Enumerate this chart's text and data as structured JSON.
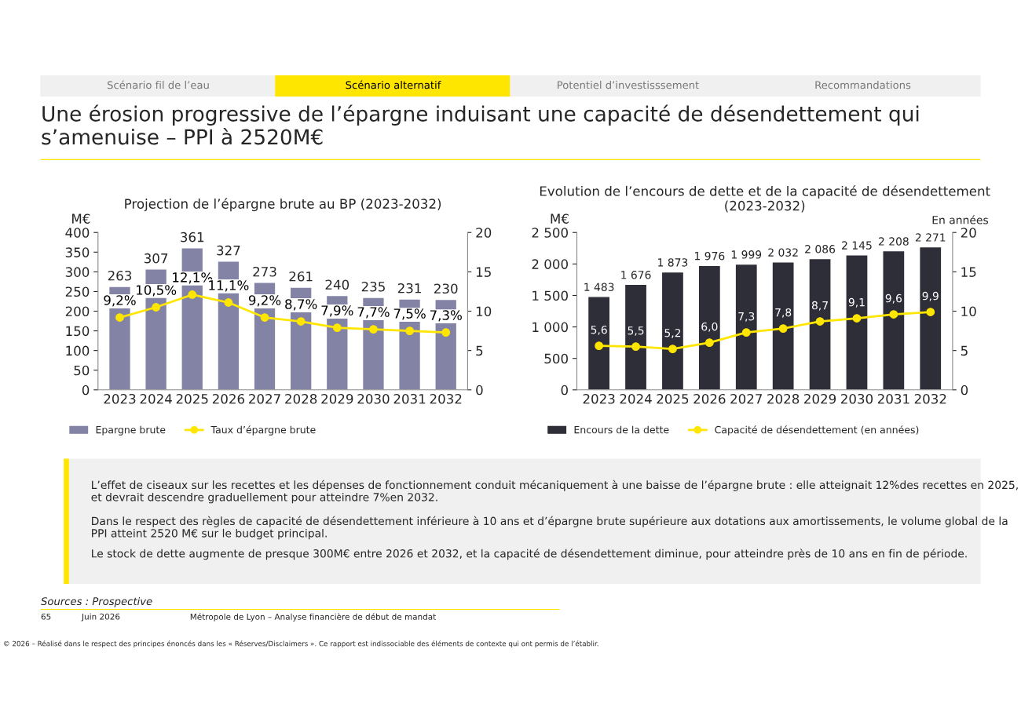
{
  "chart_data": [
    {
      "type": "bar",
      "title": "Projection de l’épargne brute au BP (2023-2032)",
      "ylabel": "M€",
      "categories": [
        "2023",
        "2024",
        "2025",
        "2026",
        "2027",
        "2028",
        "2029",
        "2030",
        "2031",
        "2032"
      ],
      "ylim": [
        0,
        400
      ],
      "yticks": [
        0,
        50,
        100,
        150,
        200,
        250,
        300,
        350,
        400
      ],
      "y2lim": [
        0,
        20
      ],
      "y2ticks": [
        0,
        5,
        10,
        15,
        20
      ],
      "legend": "bottom",
      "marker": "circle",
      "grid": false,
      "series": [
        {
          "name": "Epargne brute",
          "color": "#8383a6",
          "values": [
            263,
            307,
            361,
            327,
            273,
            261,
            240,
            235,
            231,
            230
          ],
          "value_labels": [
            "263",
            "307",
            "361",
            "327",
            "273",
            "261",
            "240",
            "235",
            "231",
            "230"
          ]
        },
        {
          "name": "Taux d’épargne brute",
          "type": "line",
          "axis": "y2",
          "color": "#ffe600",
          "values": [
            9.2,
            10.5,
            12.1,
            11.1,
            9.2,
            8.7,
            7.9,
            7.7,
            7.5,
            7.3
          ],
          "value_labels": [
            "9,2%",
            "10,5%",
            "12,1%",
            "11,1%",
            "9,2%",
            "8,7%",
            "7,9%",
            "7,7%",
            "7,5%",
            "7,3%"
          ]
        }
      ]
    },
    {
      "type": "bar",
      "title": "Evolution de l’encours de dette et de la capacité de désendettement (2023-2032)",
      "ylabel": "M€",
      "y2label": "En années",
      "categories": [
        "2023",
        "2024",
        "2025",
        "2026",
        "2027",
        "2028",
        "2029",
        "2030",
        "2031",
        "2032"
      ],
      "ylim": [
        0,
        2500
      ],
      "yticks": [
        0,
        500,
        {
          "value": 1000,
          "label": "1 000"
        },
        {
          "value": 1500,
          "label": "1 500"
        },
        {
          "value": 2000,
          "label": "2 000"
        },
        {
          "value": 2500,
          "label": "2 500"
        }
      ],
      "y2lim": [
        0,
        20
      ],
      "y2ticks": [
        0,
        5,
        10,
        15,
        20
      ],
      "legend": "bottom",
      "marker": "circle",
      "grid": false,
      "series": [
        {
          "name": "Encours de la dette",
          "color": "#2e2e38",
          "values": [
            1483,
            1676,
            1873,
            1976,
            1999,
            2032,
            2086,
            2145,
            2208,
            2271
          ],
          "value_labels": [
            "1 483",
            "1 676",
            "1 873",
            "1 976",
            "1 999",
            "2 032",
            "2 086",
            "2 145",
            "2 208",
            "2 271"
          ]
        },
        {
          "name": "Capacité de désendettement (en années)",
          "type": "line",
          "axis": "y2",
          "color": "#ffe600",
          "values": [
            5.6,
            5.5,
            5.2,
            6.0,
            7.3,
            7.8,
            8.7,
            9.1,
            9.6,
            9.9
          ],
          "value_labels": [
            "5,6",
            "5,5",
            "5,2",
            "6,0",
            "7,3",
            "7,8",
            "8,7",
            "9,1",
            "9,6",
            "9,9"
          ]
        }
      ]
    },
    {
      "type": "other",
      "title": "Une érosion progressive de l’épargne induisant une capacité de désendettement qui s’amenuise – PPI à 2520M€",
      "annotations": [
        "Scénario fil de l’eau",
        "Scénario alternatif",
        "Potentiel d’investisssement",
        "Recommandations",
        "L’effet de ciseaux sur les recettes et les dépenses de fonctionnement conduit mécaniquement à une baisse de l’épargne brute : elle atteignait 12%des recettes en 2025, et devrait descendre graduellement pour atteindre 7%en 2032.",
        "Dans le respect des règles de capacité de désendettement inférieure à 10 ans et d’épargne brute supérieure aux dotations aux amortissements, le volume global de la PPI atteint 2520 M€ sur le budget principal.",
        "Le stock de dette augmente de presque 300M€ entre 2026 et 2032, et la capacité de désendettement diminue, pour atteindre près de 10 ans en fin de période.",
        "Sources : Prospective",
        "65",
        "Juin 2026",
        "Métropole de Lyon – Analyse financière de début de mandat",
        "© 2026 – Réalisé dans le respect des principes énoncés dans les « Réserves/Disclaimers ». Ce rapport est indissociable des éléments de contexte qui ont permis de l’établir."
      ]
    }
  ]
}
